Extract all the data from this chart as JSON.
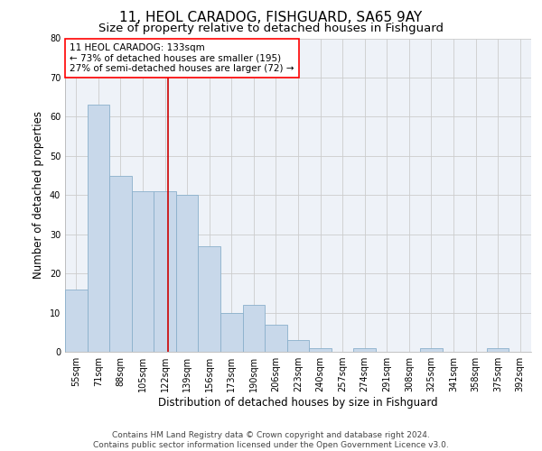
{
  "title_line1": "11, HEOL CARADOG, FISHGUARD, SA65 9AY",
  "title_line2": "Size of property relative to detached houses in Fishguard",
  "xlabel": "Distribution of detached houses by size in Fishguard",
  "ylabel": "Number of detached properties",
  "categories": [
    "55sqm",
    "71sqm",
    "88sqm",
    "105sqm",
    "122sqm",
    "139sqm",
    "156sqm",
    "173sqm",
    "190sqm",
    "206sqm",
    "223sqm",
    "240sqm",
    "257sqm",
    "274sqm",
    "291sqm",
    "308sqm",
    "325sqm",
    "341sqm",
    "358sqm",
    "375sqm",
    "392sqm"
  ],
  "values": [
    16,
    63,
    45,
    41,
    41,
    40,
    27,
    10,
    12,
    7,
    3,
    1,
    0,
    1,
    0,
    0,
    1,
    0,
    0,
    1,
    0
  ],
  "bar_color": "#c8d8ea",
  "bar_edge_color": "#8ab0cc",
  "property_label": "11 HEOL CARADOG: 133sqm",
  "annotation_line1": "← 73% of detached houses are smaller (195)",
  "annotation_line2": "27% of semi-detached houses are larger (72) →",
  "vline_color": "#cc0000",
  "ylim": [
    0,
    80
  ],
  "yticks": [
    0,
    10,
    20,
    30,
    40,
    50,
    60,
    70,
    80
  ],
  "grid_color": "#cccccc",
  "background_color": "#eef2f8",
  "footer_line1": "Contains HM Land Registry data © Crown copyright and database right 2024.",
  "footer_line2": "Contains public sector information licensed under the Open Government Licence v3.0.",
  "title_fontsize": 11,
  "subtitle_fontsize": 9.5,
  "axis_label_fontsize": 8.5,
  "tick_fontsize": 7,
  "annotation_fontsize": 7.5,
  "footer_fontsize": 6.5
}
